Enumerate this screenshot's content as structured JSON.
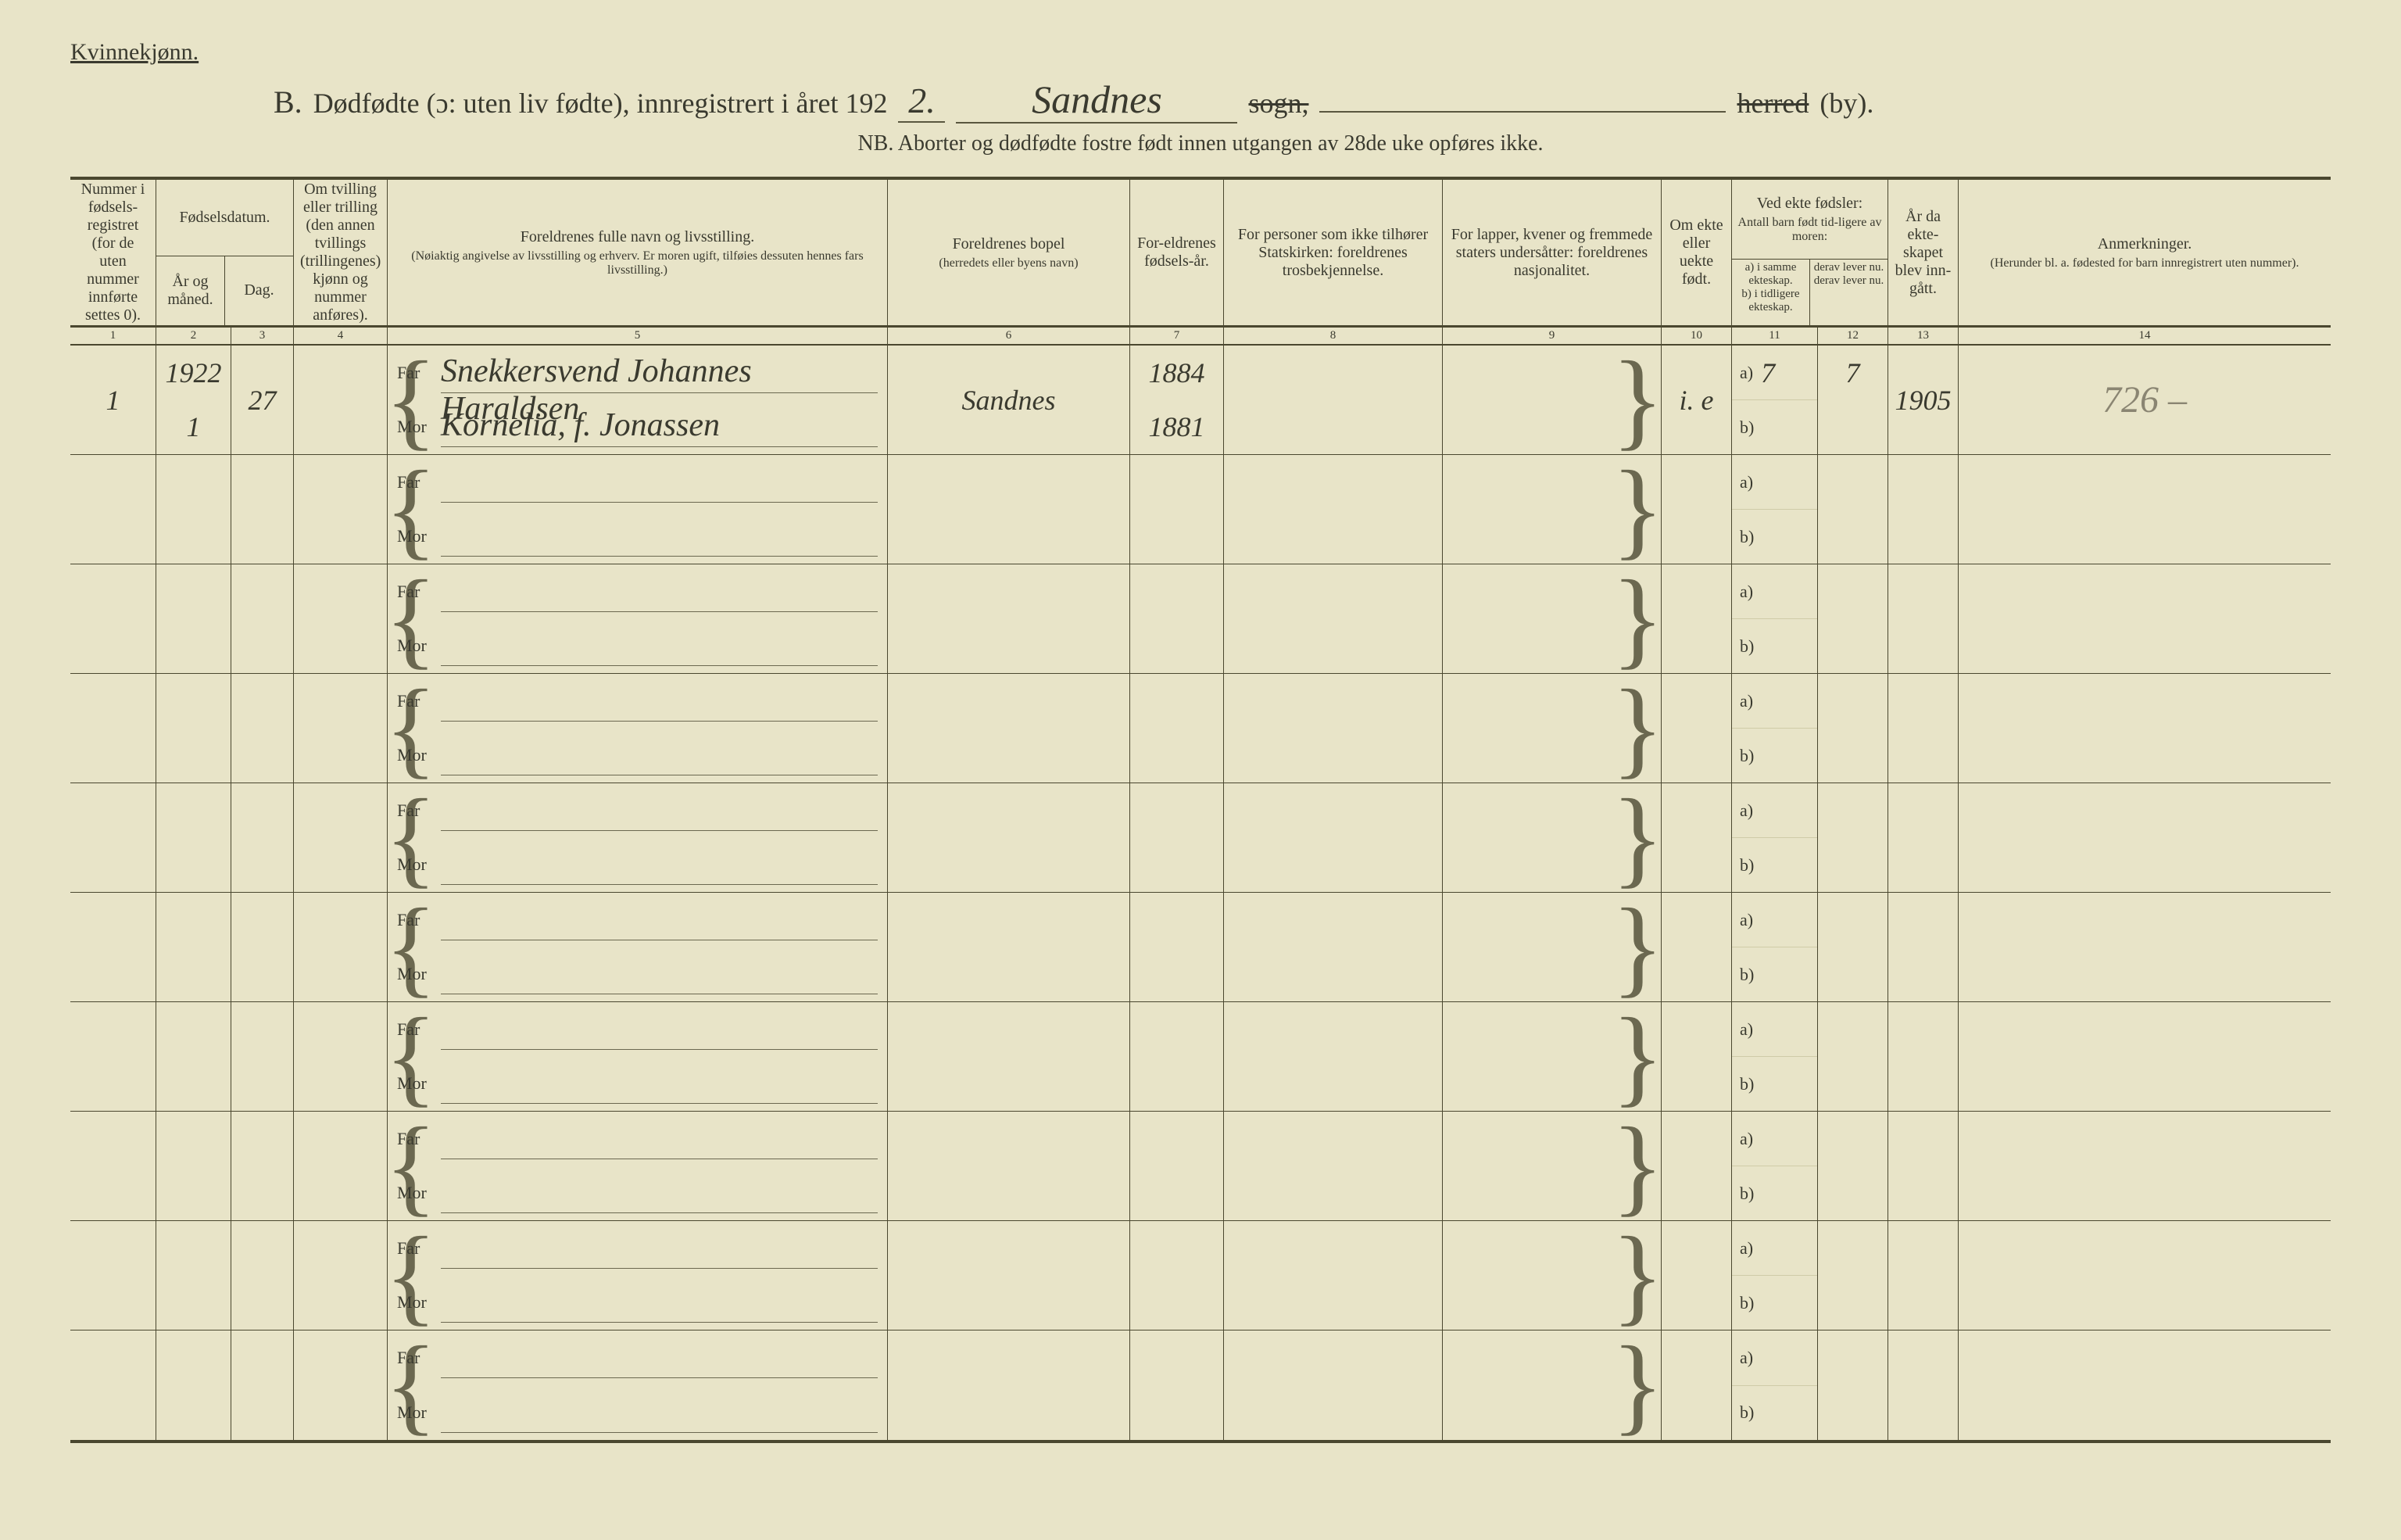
{
  "header": {
    "gender_label": "Kvinnekjønn.",
    "letter": "B.",
    "title_lead": "Dødfødte (ɔ: uten liv fødte), innregistrert i året 192",
    "year_last_digit": "2.",
    "place": "Sandnes",
    "sogn_word": "sogn,",
    "herred_word": "herred",
    "by_word": " (by).",
    "subtitle": "NB.  Aborter og dødfødte fostre født innen utgangen av 28de uke opføres ikke."
  },
  "columns": {
    "c1": "Nummer i fødsels-registret (for de uten nummer innførte settes 0).",
    "c2_group": "Fødselsdatum.",
    "c2": "År og måned.",
    "c3": "Dag.",
    "c4": "Om tvilling eller trilling (den annen tvillings (trillingenes) kjønn og nummer anføres).",
    "c5": "Foreldrenes fulle navn og livsstilling.",
    "c5_sub": "(Nøiaktig angivelse av livsstilling og erhverv. Er moren ugift, tilføies dessuten hennes fars livsstilling.)",
    "c6": "Foreldrenes bopel",
    "c6_sub": "(herredets eller byens navn)",
    "c7": "For-eldrenes fødsels-år.",
    "c8": "For personer som ikke tilhører Statskirken: foreldrenes trosbekjennelse.",
    "c9": "For lapper, kvener og fremmede staters undersåtter: foreldrenes nasjonalitet.",
    "c10": "Om ekte eller uekte født.",
    "c11_12_top": "Ved ekte fødsler:",
    "c11_12_mid": "Antall barn født tid-ligere av moren:",
    "c11a": "a) i samme ekteskap.",
    "c11b": "b) i tidligere ekteskap.",
    "c12a": "derav lever nu.",
    "c12b": "derav lever nu.",
    "c13": "År da ekte-skapet blev inn-gått.",
    "c14": "Anmerkninger.",
    "c14_sub": "(Herunder bl. a. fødested for barn innregistrert uten nummer)."
  },
  "colnums": [
    "1",
    "2",
    "3",
    "4",
    "5",
    "6",
    "7",
    "8",
    "9",
    "10",
    "11",
    "12",
    "13",
    "14"
  ],
  "far_label": "Far",
  "mor_label": "Mor",
  "ab_a": "a)",
  "ab_b": "b)",
  "rows": [
    {
      "num": "1",
      "year_month": "1922\n1",
      "day": "27",
      "twin": "",
      "far": "Snekkersvend Johannes Haraldsen",
      "mor": "Kornelia, f. Jonassen",
      "bopel": "Sandnes",
      "far_year": "1884",
      "mor_year": "1881",
      "c8": "",
      "c9": "",
      "ekte": "i. e",
      "a_val": "7",
      "b_val": "",
      "der_a": "7",
      "der_b": "",
      "ekteskap_year": "1905",
      "anm": "726 –"
    },
    {},
    {},
    {},
    {},
    {},
    {},
    {},
    {},
    {}
  ],
  "style": {
    "bg": "#e8e4c8",
    "ink": "#3a3a2f",
    "rule": "#4a472f",
    "pencil": "#8a8572"
  }
}
